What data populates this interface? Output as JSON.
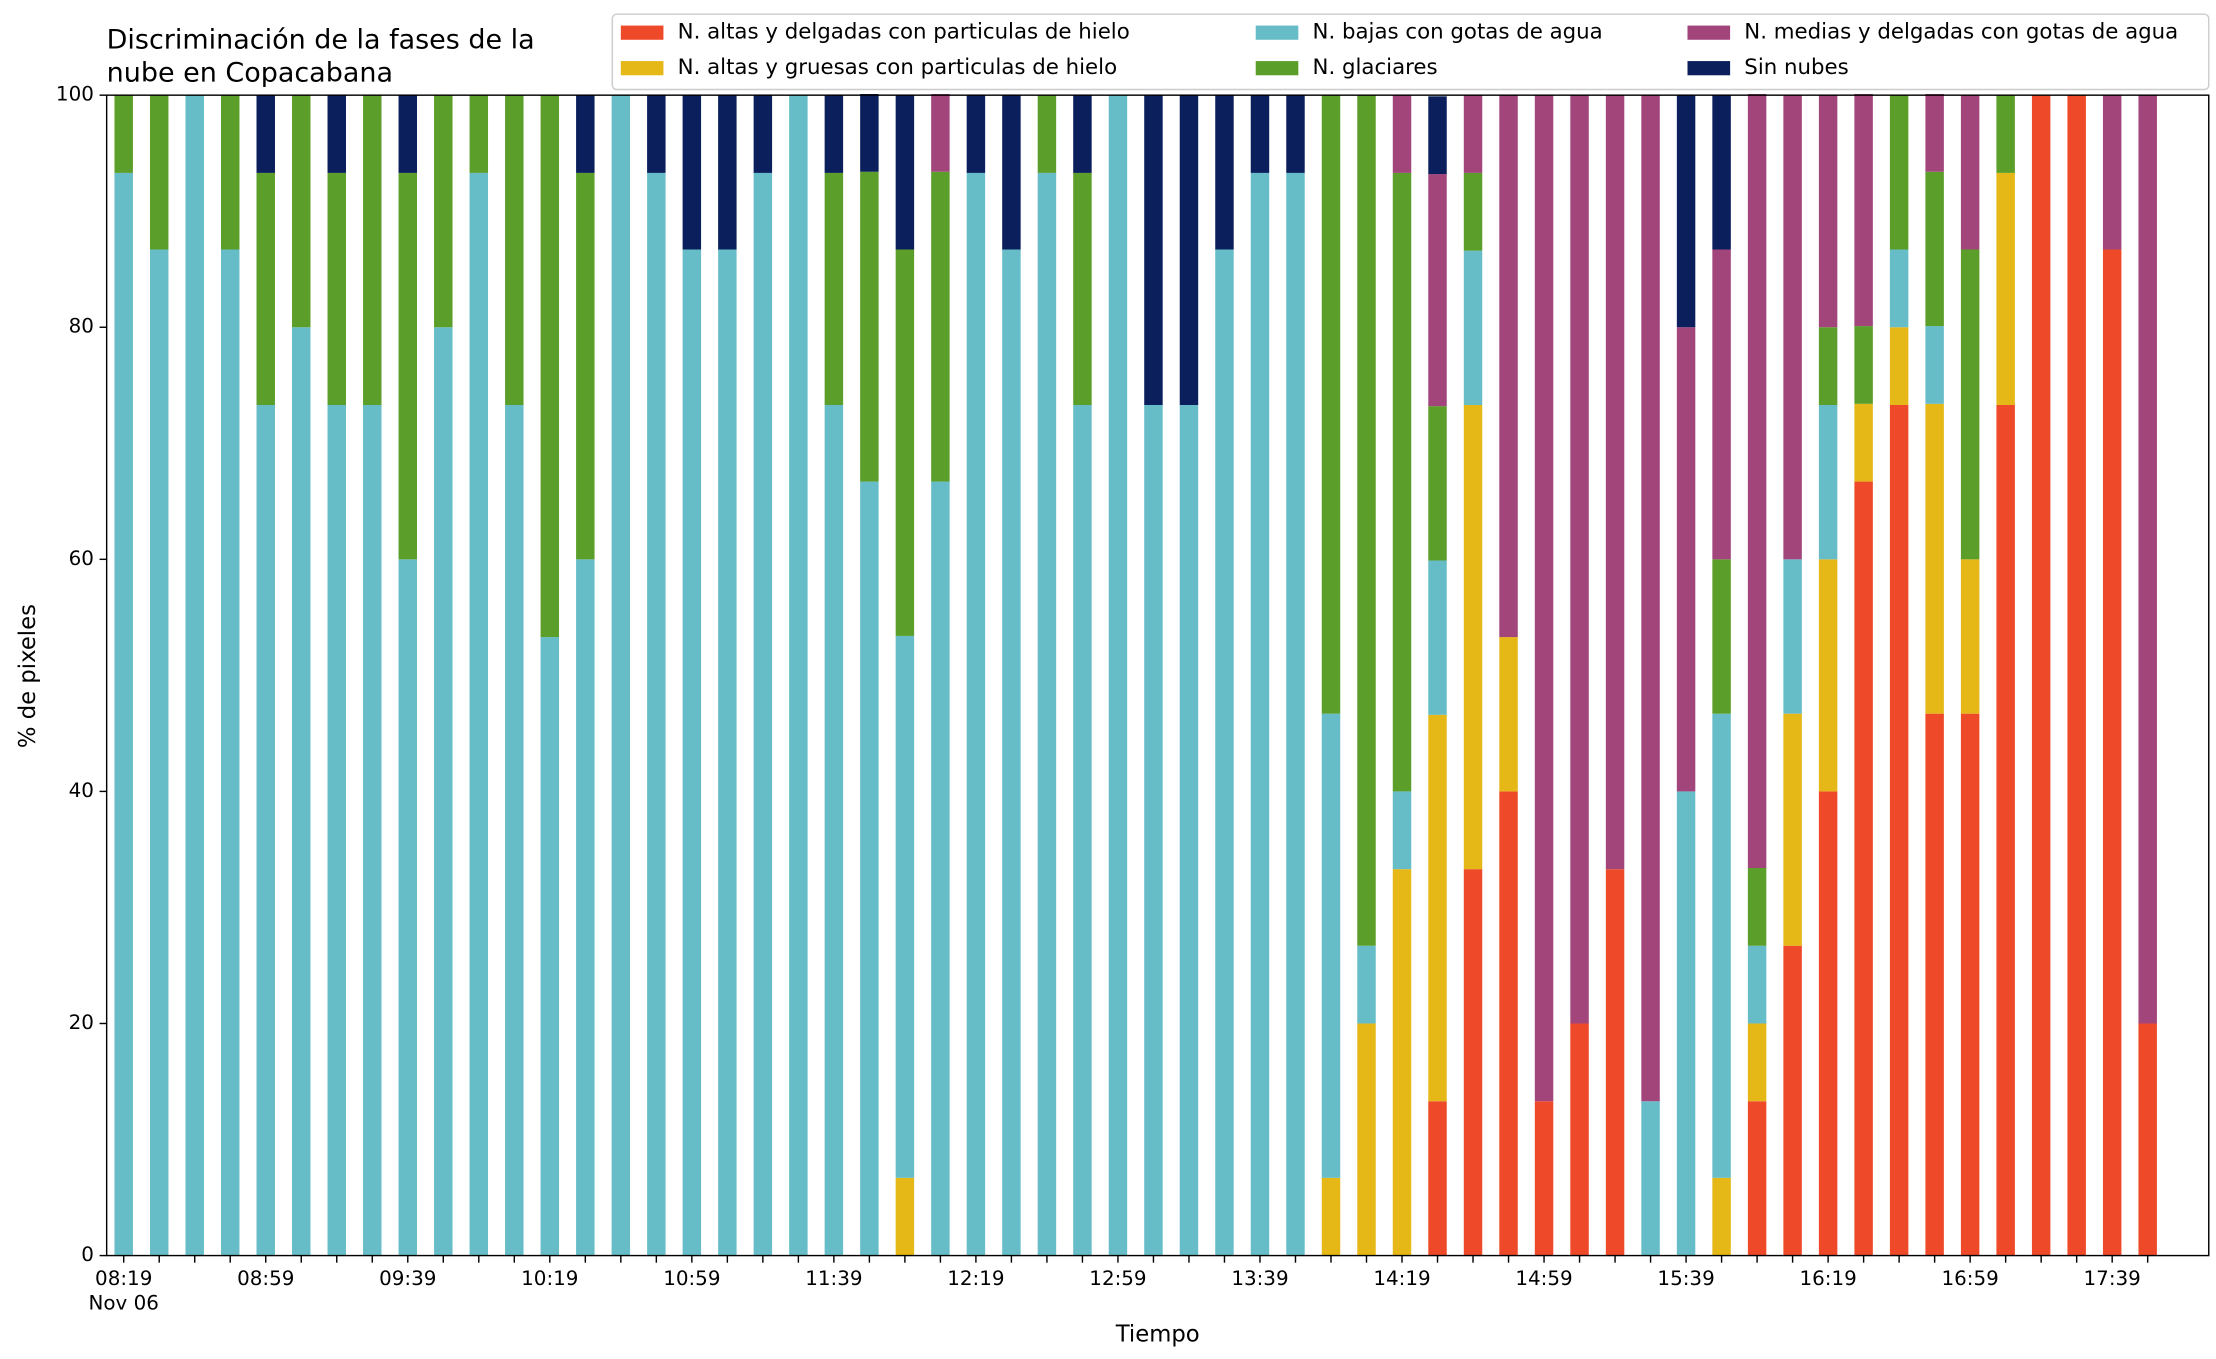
{
  "chart_data": {
    "type": "stacked_bar",
    "title": [
      "Discriminación de la fases de la",
      "nube en Copacabana"
    ],
    "xlabel": "Tiempo",
    "ylabel": "% de pixeles",
    "date_label": "Nov 06",
    "categories": [
      "08:19",
      null,
      null,
      null,
      "08:59",
      null,
      null,
      null,
      "09:39",
      null,
      null,
      null,
      "10:19",
      null,
      null,
      null,
      "10:59",
      null,
      null,
      null,
      "11:39",
      null,
      null,
      null,
      "12:19",
      null,
      null,
      null,
      "12:59",
      null,
      null,
      null,
      "13:39",
      null,
      null,
      null,
      "14:19",
      null,
      null,
      null,
      "14:59",
      null,
      null,
      null,
      "15:39",
      null,
      null,
      null,
      "16:19",
      null,
      null,
      null,
      "16:59",
      null,
      null,
      null,
      "17:39",
      null
    ],
    "ylim": [
      0,
      100
    ],
    "yticks": [
      0,
      20,
      40,
      60,
      80,
      100
    ],
    "legend": "top-right",
    "series": [
      {
        "name": "N. altas y delgadas con particulas de hielo",
        "color": "#ee4a2a",
        "values": [
          0,
          0,
          0,
          0,
          0,
          0,
          0,
          0,
          0,
          0,
          0,
          0,
          0,
          0,
          0,
          0,
          0,
          0,
          0,
          0,
          0,
          0,
          0,
          0,
          0,
          0,
          0,
          0,
          0,
          0,
          0,
          0,
          0,
          0,
          0,
          0,
          0,
          13.3,
          33.3,
          40,
          13.3,
          20,
          33.3,
          0,
          0,
          0,
          13.3,
          26.7,
          40,
          66.7,
          73.3,
          46.7,
          46.7,
          73.3,
          100,
          100,
          86.7,
          20
        ]
      },
      {
        "name": "N. altas y gruesas con particulas de hielo",
        "color": "#e5b717",
        "values": [
          0,
          0,
          0,
          0,
          0,
          0,
          0,
          0,
          0,
          0,
          0,
          0,
          0,
          0,
          0,
          0,
          0,
          0,
          0,
          0,
          0,
          0,
          6.7,
          0,
          0,
          0,
          0,
          0,
          0,
          0,
          0,
          0,
          0,
          0,
          6.7,
          20,
          33.3,
          33.3,
          40,
          13.3,
          0,
          0,
          0,
          0,
          0,
          6.7,
          6.7,
          20,
          20,
          6.7,
          6.7,
          26.7,
          13.3,
          20,
          0,
          0,
          0,
          0
        ]
      },
      {
        "name": "N. bajas con gotas de agua",
        "color": "#66bdc8",
        "values": [
          93.3,
          86.7,
          100,
          86.7,
          73.3,
          80,
          73.3,
          73.3,
          60,
          80,
          93.3,
          73.3,
          53.3,
          60,
          100,
          93.3,
          86.7,
          86.7,
          93.3,
          100,
          73.3,
          66.7,
          46.7,
          66.7,
          93.3,
          86.7,
          93.3,
          73.3,
          100,
          73.3,
          73.3,
          86.7,
          93.3,
          93.3,
          40,
          6.7,
          6.7,
          13.3,
          13.3,
          0,
          0,
          0,
          0,
          13.3,
          40,
          40,
          6.7,
          13.3,
          13.3,
          0,
          6.7,
          6.7,
          0,
          0,
          0,
          0,
          0,
          0
        ]
      },
      {
        "name": "N. glaciares",
        "color": "#5c9e2a",
        "values": [
          6.7,
          13.3,
          0,
          13.3,
          20,
          20,
          20,
          26.7,
          33.3,
          20,
          6.7,
          26.7,
          46.7,
          33.3,
          0,
          0,
          0,
          0,
          0,
          0,
          20,
          26.7,
          33.3,
          26.7,
          0,
          0,
          6.7,
          20,
          0,
          0,
          0,
          0,
          0,
          0,
          53.3,
          73.3,
          53.3,
          13.3,
          6.7,
          0,
          0,
          0,
          0,
          0,
          0,
          13.3,
          6.7,
          0,
          6.7,
          6.7,
          13.3,
          13.3,
          26.7,
          6.7,
          0,
          0,
          0,
          0
        ]
      },
      {
        "name": "N. medias y delgadas con gotas de agua",
        "color": "#a2457b",
        "values": [
          0,
          0,
          0,
          0,
          0,
          0,
          0,
          0,
          0,
          0,
          0,
          0,
          0,
          0,
          0,
          0,
          0,
          0,
          0,
          0,
          0,
          0,
          0,
          6.7,
          0,
          0,
          0,
          0,
          0,
          0,
          0,
          0,
          0,
          0,
          0,
          0,
          6.7,
          20,
          6.7,
          46.7,
          86.7,
          80,
          66.7,
          86.7,
          40,
          26.7,
          66.7,
          40,
          20,
          20,
          0,
          6.7,
          13.3,
          0,
          0,
          0,
          13.3,
          80
        ]
      },
      {
        "name": "Sin nubes",
        "color": "#0a1f5c",
        "values": [
          0,
          0,
          0,
          0,
          6.7,
          0,
          6.7,
          0,
          6.7,
          0,
          0,
          0,
          0,
          6.7,
          0,
          6.7,
          13.3,
          13.3,
          6.7,
          0,
          6.7,
          6.7,
          13.3,
          0,
          6.7,
          13.3,
          0,
          6.7,
          0,
          26.7,
          26.7,
          13.3,
          6.7,
          6.7,
          0,
          0,
          0,
          6.7,
          0,
          0,
          0,
          0,
          0,
          0,
          20,
          13.3,
          0,
          0,
          0,
          0,
          0,
          0,
          0,
          0,
          0,
          0,
          0,
          0
        ]
      }
    ]
  }
}
